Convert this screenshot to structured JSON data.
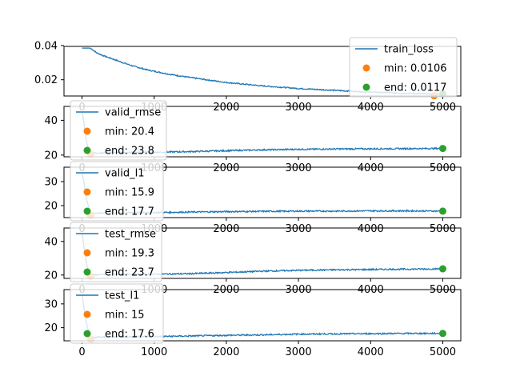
{
  "chart_data": [
    {
      "type": "line",
      "series": [
        {
          "name": "train_loss",
          "color": "#1f77b4",
          "x": [
            0,
            110,
            140,
            200,
            300,
            400,
            500,
            700,
            900,
            1200,
            1500,
            2000,
            2500,
            3000,
            3500,
            4000,
            4500,
            4800,
            5000
          ],
          "y": [
            0.0385,
            0.0385,
            0.0378,
            0.0358,
            0.034,
            0.0325,
            0.031,
            0.0281,
            0.0258,
            0.0233,
            0.0213,
            0.0184,
            0.0164,
            0.0149,
            0.0138,
            0.0128,
            0.0121,
            0.0117,
            0.0117
          ]
        }
      ],
      "markers": [
        {
          "label": "min: 0.0106",
          "x": 4880,
          "y": 0.0106,
          "color": "#ff7f0e"
        },
        {
          "label": "end: 0.0117",
          "x": 5000,
          "y": 0.0117,
          "color": "#2ca02c"
        }
      ],
      "ylim": [
        0.0105,
        0.0395
      ],
      "yticks": [
        0.02,
        0.04
      ],
      "ytick_labels": [
        "0.02",
        "0.04"
      ],
      "legend_loc": "upper right"
    },
    {
      "type": "line",
      "series": [
        {
          "name": "valid_rmse",
          "color": "#1f77b4",
          "x": [
            0,
            30,
            60,
            100,
            130,
            200,
            500,
            1000,
            1500,
            2000,
            2500,
            3000,
            3500,
            4000,
            4500,
            5000
          ],
          "y": [
            45,
            38,
            28,
            22,
            20.9,
            21.2,
            21.4,
            21.6,
            22.0,
            22.5,
            23.0,
            23.3,
            23.5,
            23.6,
            23.7,
            23.8
          ]
        }
      ],
      "markers": [
        {
          "label": "min: 20.4",
          "x": 120,
          "y": 20.4,
          "color": "#ff7f0e"
        },
        {
          "label": "end: 23.8",
          "x": 5000,
          "y": 23.8,
          "color": "#2ca02c"
        }
      ],
      "ylim": [
        19,
        48
      ],
      "yticks": [
        20,
        40
      ],
      "ytick_labels": [
        "20",
        "40"
      ],
      "xtick_labels_partial": [
        "2000",
        "3000",
        "4000",
        "5000"
      ],
      "legend_loc": "upper left"
    },
    {
      "type": "line",
      "series": [
        {
          "name": "valid_l1",
          "color": "#1f77b4",
          "x": [
            0,
            30,
            60,
            100,
            130,
            200,
            500,
            1000,
            1500,
            2000,
            2500,
            3000,
            3500,
            4000,
            4500,
            5000
          ],
          "y": [
            34,
            29,
            23,
            18.5,
            16.6,
            16.9,
            17.0,
            17.1,
            17.3,
            17.5,
            17.6,
            17.7,
            17.7,
            17.8,
            17.8,
            17.7
          ]
        }
      ],
      "markers": [
        {
          "label": "min: 15.9",
          "x": 120,
          "y": 15.9,
          "color": "#ff7f0e"
        },
        {
          "label": "end: 17.7",
          "x": 5000,
          "y": 17.7,
          "color": "#2ca02c"
        }
      ],
      "ylim": [
        15,
        36
      ],
      "yticks": [
        20,
        30
      ],
      "ytick_labels": [
        "20",
        "30"
      ],
      "xtick_labels_partial": [
        "2000",
        "3000",
        "4000",
        "5000"
      ],
      "legend_loc": "upper left"
    },
    {
      "type": "line",
      "series": [
        {
          "name": "test_rmse",
          "color": "#1f77b4",
          "x": [
            0,
            30,
            60,
            100,
            130,
            200,
            500,
            1000,
            1500,
            2000,
            2500,
            3000,
            3500,
            4000,
            4500,
            5000
          ],
          "y": [
            45,
            36,
            27,
            21.5,
            20.0,
            20.2,
            20.4,
            20.5,
            20.8,
            21.5,
            22.3,
            22.8,
            23.1,
            23.3,
            23.5,
            23.7
          ]
        }
      ],
      "markers": [
        {
          "label": "min: 19.3",
          "x": 120,
          "y": 19.3,
          "color": "#ff7f0e"
        },
        {
          "label": "end: 23.7",
          "x": 5000,
          "y": 23.7,
          "color": "#2ca02c"
        }
      ],
      "ylim": [
        18,
        48
      ],
      "yticks": [
        20,
        40
      ],
      "ytick_labels": [
        "20",
        "40"
      ],
      "xtick_labels_partial": [
        "2000",
        "3000",
        "4000",
        "5000"
      ],
      "legend_loc": "upper left"
    },
    {
      "type": "line",
      "series": [
        {
          "name": "test_l1",
          "color": "#1f77b4",
          "x": [
            0,
            30,
            60,
            100,
            130,
            200,
            500,
            1000,
            1500,
            2000,
            2500,
            3000,
            3500,
            4000,
            4500,
            5000
          ],
          "y": [
            34,
            28,
            22,
            17.5,
            15.8,
            16.0,
            16.2,
            16.3,
            16.5,
            16.8,
            17.0,
            17.3,
            17.4,
            17.5,
            17.6,
            17.6
          ]
        }
      ],
      "markers": [
        {
          "label": "min: 15",
          "x": 120,
          "y": 15,
          "color": "#ff7f0e"
        },
        {
          "label": "end: 17.6",
          "x": 5000,
          "y": 17.6,
          "color": "#2ca02c"
        }
      ],
      "ylim": [
        14.5,
        36
      ],
      "yticks": [
        20,
        30
      ],
      "ytick_labels": [
        "20",
        "30"
      ],
      "xticks": [
        0,
        1000,
        2000,
        3000,
        4000,
        5000
      ],
      "xtick_labels": [
        "0",
        "1000",
        "2000",
        "3000",
        "4000",
        "5000"
      ],
      "legend_loc": "upper left"
    }
  ],
  "xlim": [
    -250,
    5250
  ],
  "colors": {
    "line": "#1f77b4",
    "min_marker": "#ff7f0e",
    "end_marker": "#2ca02c",
    "axes": "#000000",
    "legend_border": "#cccccc"
  }
}
